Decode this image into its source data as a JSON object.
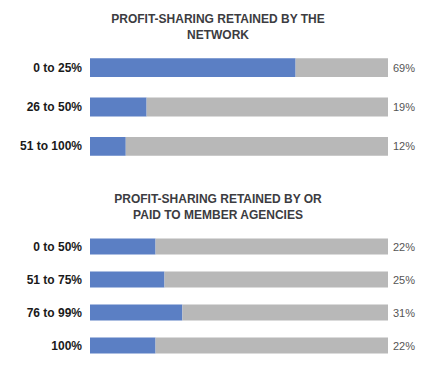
{
  "chart_data": [
    {
      "type": "bar",
      "orientation": "horizontal",
      "stacked": true,
      "title": "PROFIT-SHARING RETAINED BY THE\nNETWORK",
      "categories": [
        "0 to 25%",
        "26 to 50%",
        "51 to 100%"
      ],
      "series": [
        {
          "color": "#5b7fc4",
          "values": [
            69,
            19,
            12
          ],
          "value_labels": [
            "69%",
            "19%",
            "12%"
          ]
        },
        {
          "color": "#b8b8b8",
          "values": [
            31,
            81,
            88
          ]
        }
      ],
      "xlim": [
        0,
        100
      ],
      "grid": false,
      "tick_labels": "y",
      "data_labels": true
    },
    {
      "type": "bar",
      "orientation": "horizontal",
      "stacked": true,
      "title": "PROFIT-SHARING RETAINED BY OR\nPAID TO MEMBER AGENCIES",
      "categories": [
        "0 to 50%",
        "51 to 75%",
        "76 to 99%",
        "100%"
      ],
      "series": [
        {
          "color": "#5b7fc4",
          "values": [
            22,
            25,
            31,
            22
          ],
          "value_labels": [
            "22%",
            "25%",
            "31%",
            "22%"
          ]
        },
        {
          "color": "#b8b8b8",
          "values": [
            78,
            75,
            69,
            78
          ]
        }
      ],
      "xlim": [
        0,
        100
      ],
      "grid": false,
      "tick_labels": "y",
      "data_labels": true
    }
  ]
}
